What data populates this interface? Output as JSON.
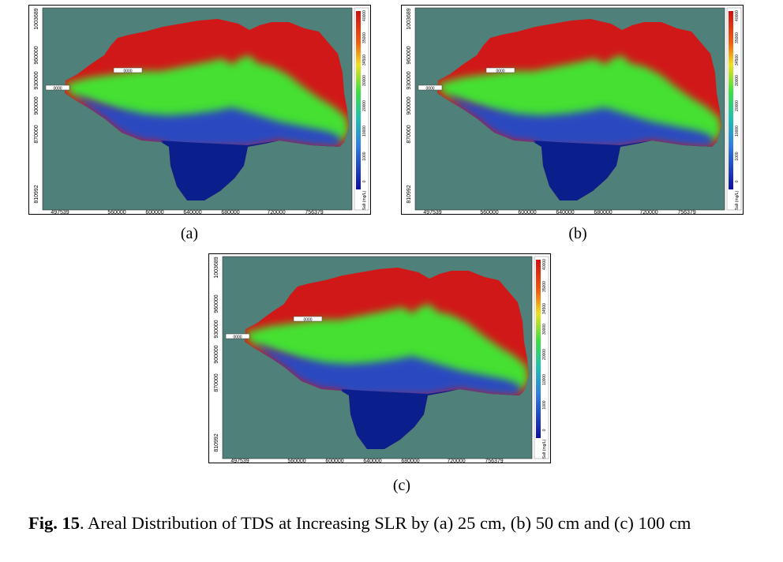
{
  "panels": [
    {
      "id": "a",
      "label": "(a)"
    },
    {
      "id": "b",
      "label": "(b)"
    },
    {
      "id": "c",
      "label": "(c)"
    }
  ],
  "map": {
    "x_ticks": [
      "497539",
      "560000",
      "600000",
      "640000",
      "680000",
      "720000",
      "756379"
    ],
    "y_ticks": [
      "1003689",
      "960000",
      "930000",
      "900000",
      "870000",
      "810992"
    ],
    "marker_upper": "0000",
    "marker_lower": "0000",
    "background_color": "#4f8079",
    "land_colors": {
      "high": "#d11818",
      "mid": "#44e030",
      "low": "#2c49c0",
      "deep": "#0b1f8c"
    }
  },
  "colorbar": {
    "ticks": [
      "40000",
      "35000",
      "34500",
      "30000",
      "20000",
      "10000",
      "1000",
      "0"
    ],
    "unit_label": "Salt (mg/L)"
  },
  "caption": {
    "fig_label": "Fig. 15",
    "text": ". Areal Distribution of TDS at Increasing SLR by (a) 25 cm, (b) 50 cm and (c) 100 cm"
  }
}
